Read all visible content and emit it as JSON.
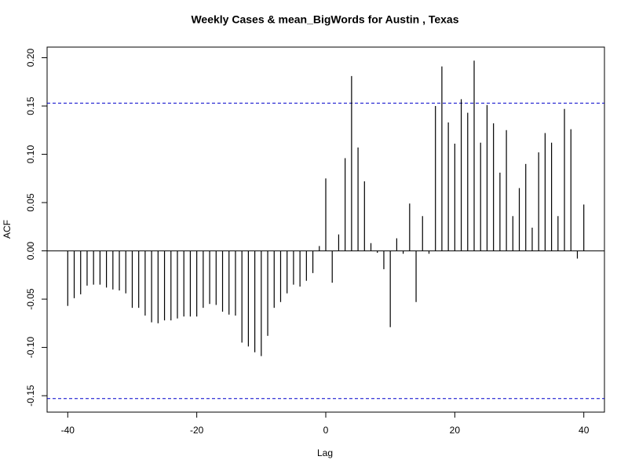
{
  "chart_data": {
    "type": "acf",
    "title": "Weekly Cases & mean_BigWords for Austin , Texas",
    "x_label": "Lag",
    "y_label": "ACF",
    "x": [
      -40,
      -39,
      -38,
      -37,
      -36,
      -35,
      -34,
      -33,
      -32,
      -31,
      -30,
      -29,
      -28,
      -27,
      -26,
      -25,
      -24,
      -23,
      -22,
      -21,
      -20,
      -19,
      -18,
      -17,
      -16,
      -15,
      -14,
      -13,
      -12,
      -11,
      -10,
      -9,
      -8,
      -7,
      -6,
      -5,
      -4,
      -3,
      -2,
      -1,
      0,
      1,
      2,
      3,
      4,
      5,
      6,
      7,
      8,
      9,
      10,
      11,
      12,
      13,
      14,
      15,
      16,
      17,
      18,
      19,
      20,
      21,
      22,
      23,
      24,
      25,
      26,
      27,
      28,
      29,
      30,
      31,
      32,
      33,
      34,
      35,
      36,
      37,
      38,
      39,
      40
    ],
    "values": [
      -0.057,
      -0.049,
      -0.045,
      -0.036,
      -0.035,
      -0.035,
      -0.038,
      -0.04,
      -0.041,
      -0.044,
      -0.059,
      -0.059,
      -0.067,
      -0.074,
      -0.075,
      -0.072,
      -0.072,
      -0.07,
      -0.068,
      -0.068,
      -0.068,
      -0.059,
      -0.055,
      -0.056,
      -0.063,
      -0.066,
      -0.067,
      -0.095,
      -0.099,
      -0.105,
      -0.109,
      -0.088,
      -0.059,
      -0.053,
      -0.044,
      -0.035,
      -0.037,
      -0.031,
      -0.023,
      0.005,
      0.075,
      -0.033,
      0.017,
      0.096,
      0.181,
      0.107,
      0.072,
      0.008,
      -0.002,
      -0.019,
      -0.079,
      0.013,
      -0.003,
      0.049,
      -0.053,
      0.036,
      -0.003,
      0.15,
      0.191,
      0.133,
      0.111,
      0.157,
      0.143,
      0.197,
      0.112,
      0.151,
      0.132,
      0.081,
      0.125,
      0.036,
      0.065,
      0.09,
      0.024,
      0.102,
      0.122,
      0.112,
      0.036,
      0.147,
      0.126,
      -0.008,
      0.048
    ],
    "color": "#000000",
    "ci_lines": [
      0.153,
      -0.153
    ],
    "ci_color": "#0000cc",
    "xlim": [
      -43.2,
      43.2
    ],
    "ylim": [
      -0.167,
      0.211
    ],
    "xticks": [
      -40,
      -20,
      0,
      20,
      40
    ],
    "yticks": [
      -0.15,
      {
        "value": -0.1,
        "label": "-0.10"
      },
      -0.05,
      {
        "value": 0,
        "label": "0.00"
      },
      0.05,
      {
        "value": 0.1,
        "label": "0.10"
      },
      0.15,
      {
        "value": 0.2,
        "label": "0.20"
      }
    ]
  }
}
